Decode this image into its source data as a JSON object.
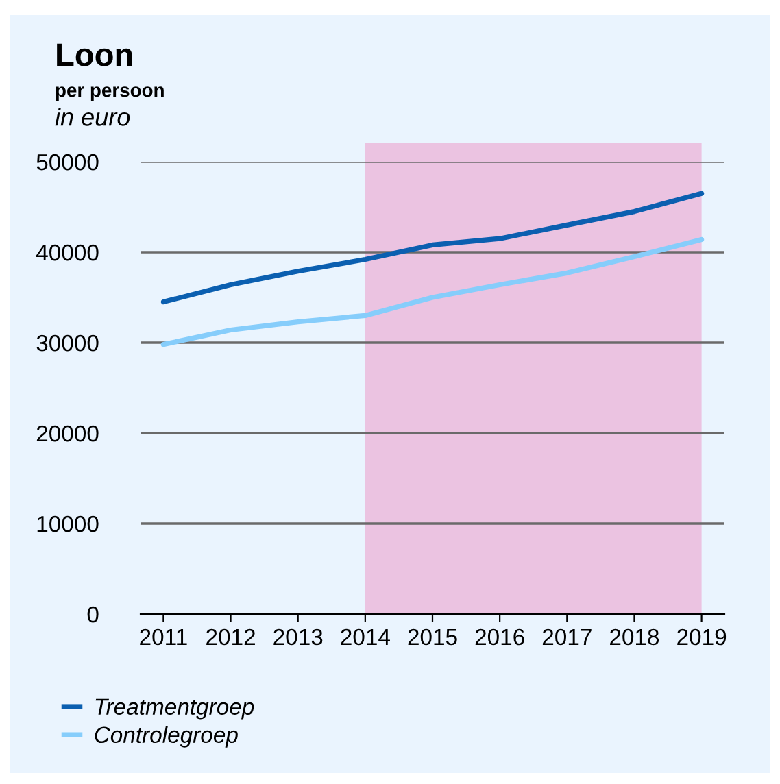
{
  "chart_data": {
    "type": "line",
    "title": "Loon",
    "subtitle": "per persoon",
    "ylabel": "in euro",
    "x": [
      2011,
      2012,
      2013,
      2014,
      2015,
      2016,
      2017,
      2018,
      2019
    ],
    "series": [
      {
        "name": "Treatmentgroep",
        "color": "#0b5fb0",
        "values": [
          34500,
          36400,
          37900,
          39200,
          40800,
          41500,
          43000,
          44500,
          46500
        ]
      },
      {
        "name": "Controlegroep",
        "color": "#86cdfb",
        "values": [
          29800,
          31400,
          32300,
          33000,
          35000,
          36400,
          37700,
          39500,
          41400
        ]
      }
    ],
    "xlim": [
      2010.67,
      2019.33
    ],
    "xticks": [
      2011,
      2012,
      2013,
      2014,
      2015,
      2016,
      2017,
      2018,
      2019
    ],
    "ylim": [
      0,
      50000
    ],
    "yticks": [
      0,
      10000,
      20000,
      30000,
      40000,
      50000
    ],
    "bands": [
      {
        "axis": "x",
        "from": 2014,
        "to": 2019,
        "color": "#ebc3e1"
      }
    ],
    "grid": "y",
    "legend": "bottom left",
    "marker": "none",
    "line_style": "solid"
  }
}
